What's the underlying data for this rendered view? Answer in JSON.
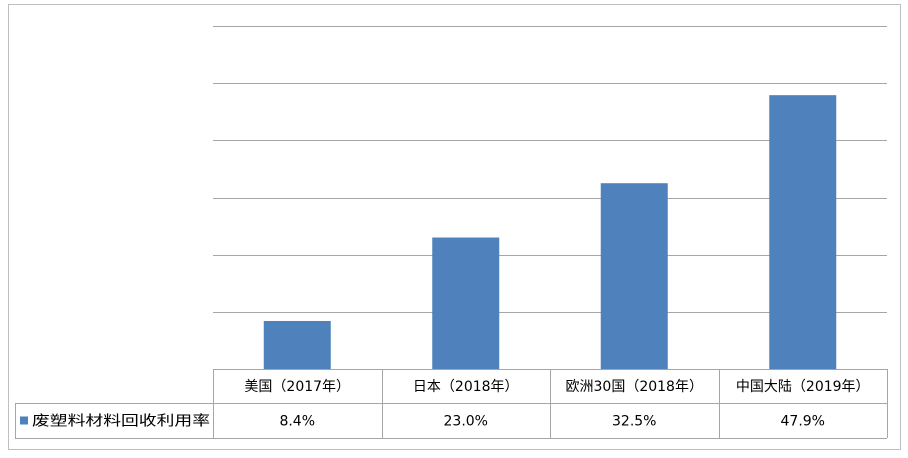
{
  "chart_data": {
    "type": "bar",
    "categories": [
      "美国（2017年）",
      "日本（2018年）",
      "欧洲30国（2018年）",
      "中国大陆（2019年）"
    ],
    "series": [
      {
        "name": "废塑料材料回收利用率",
        "values": [
          8.4,
          23.0,
          32.5,
          47.9
        ],
        "labels": [
          "8.4%",
          "23.0%",
          "32.5%",
          "47.9%"
        ]
      }
    ],
    "ylim": [
      0,
      60
    ],
    "grid": true,
    "y_axis_labels_visible": false,
    "data_table": true,
    "legend_placement": "data-table-row-header",
    "bar_color": "#4f81bd"
  }
}
